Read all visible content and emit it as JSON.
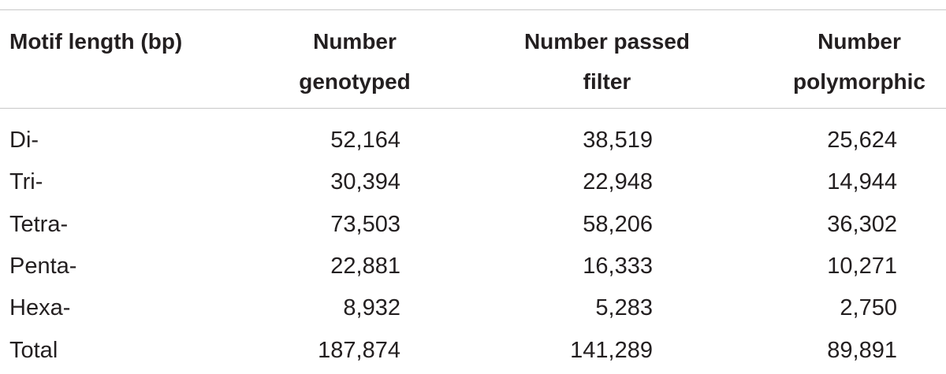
{
  "table": {
    "header": [
      [
        "Motif length (bp)"
      ],
      [
        "Number",
        "genotyped"
      ],
      [
        "Number passed",
        "filter"
      ],
      [
        "Number",
        "polymorphic"
      ]
    ],
    "rows": [
      [
        "Di-",
        "52,164",
        "38,519",
        "25,624"
      ],
      [
        "Tri-",
        "30,394",
        "22,948",
        "14,944"
      ],
      [
        "Tetra-",
        "73,503",
        "58,206",
        "36,302"
      ],
      [
        "Penta-",
        "22,881",
        "16,333",
        "10,271"
      ],
      [
        "Hexa-",
        "8,932",
        "5,283",
        "2,750"
      ],
      [
        "Total",
        "187,874",
        "141,289",
        "89,891"
      ]
    ]
  }
}
